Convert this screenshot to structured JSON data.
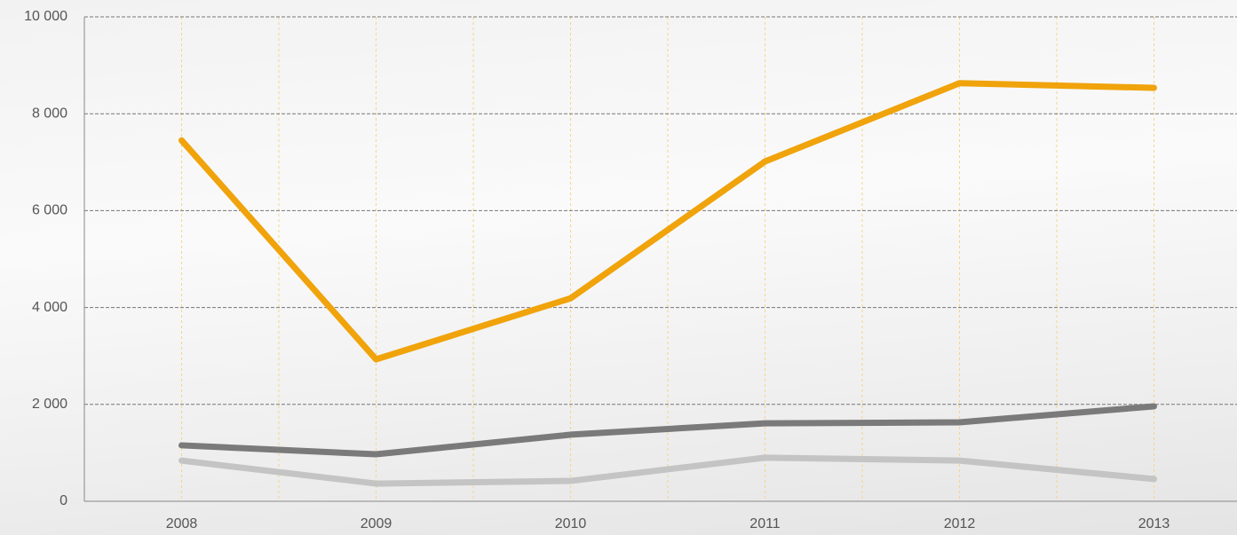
{
  "chart_data": {
    "type": "line",
    "categories": [
      "2008",
      "2009",
      "2010",
      "2011",
      "2012",
      "2013"
    ],
    "series": [
      {
        "color": "#f0a30a",
        "values": [
          7450,
          2930,
          4190,
          7015,
          8630,
          8535
        ]
      },
      {
        "color": "#7a7a7a",
        "values": [
          1155,
          970,
          1375,
          1610,
          1630,
          1960
        ]
      },
      {
        "color": "#c4c4c4",
        "values": [
          840,
          365,
          420,
          900,
          840,
          460
        ]
      }
    ],
    "ylim": [
      0,
      10000
    ],
    "yticks": [
      0,
      {
        "value": 2000,
        "label": "2 000"
      },
      {
        "value": 4000,
        "label": "4 000"
      },
      {
        "value": 6000,
        "label": "6 000"
      },
      {
        "value": 8000,
        "label": "8 000"
      },
      {
        "value": 10000,
        "label": "10 000"
      }
    ],
    "grid": true
  }
}
